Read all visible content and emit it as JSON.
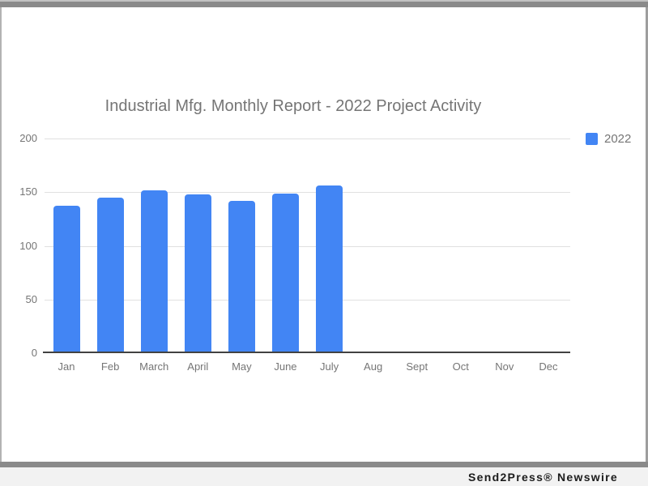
{
  "chart_data": {
    "type": "bar",
    "title": "Industrial Mfg. Monthly Report - 2022 Project Activity",
    "categories": [
      "Jan",
      "Feb",
      "March",
      "April",
      "May",
      "June",
      "July",
      "Aug",
      "Sept",
      "Oct",
      "Nov",
      "Dec"
    ],
    "series": [
      {
        "name": "2022",
        "color": "#4285f4",
        "values": [
          137,
          145,
          152,
          148,
          142,
          149,
          156,
          0,
          0,
          0,
          0,
          0
        ]
      }
    ],
    "xlabel": "",
    "ylabel": "",
    "ylim": [
      0,
      200
    ],
    "yticks": [
      0,
      50,
      100,
      150,
      200
    ],
    "grid": true,
    "legend": {
      "position": "top-right",
      "entries": [
        "2022"
      ]
    }
  },
  "footer": {
    "credit": "Send2Press® Newswire"
  }
}
